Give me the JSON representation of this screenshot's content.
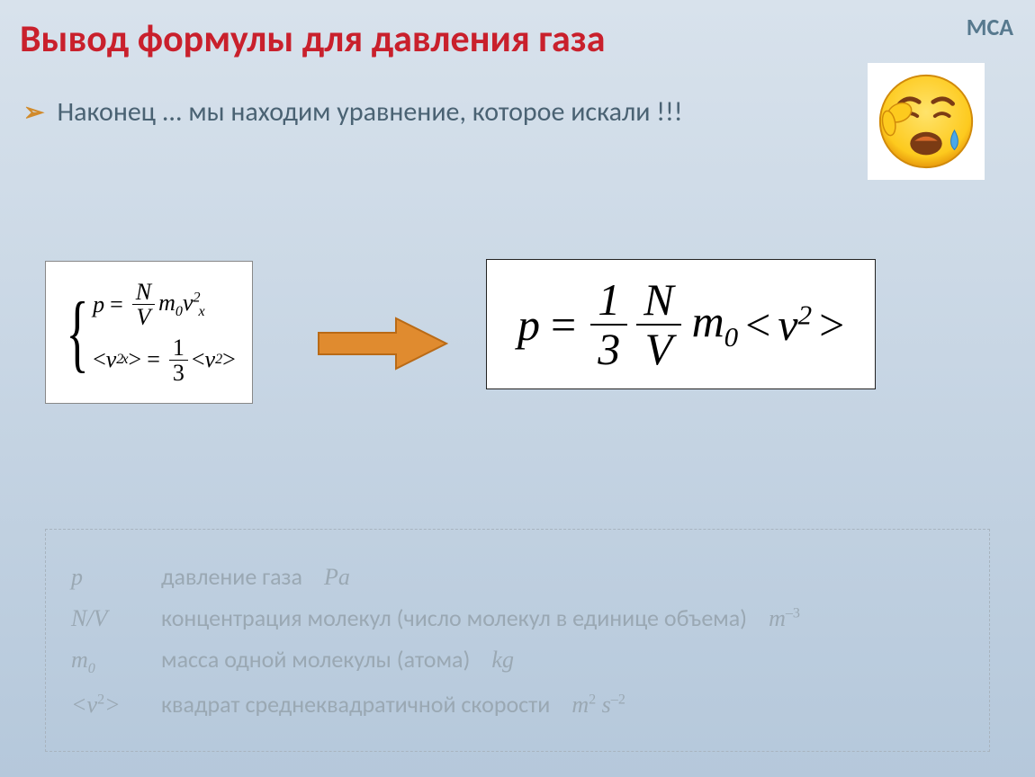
{
  "header": {
    "title": "Вывод формулы для давления газа",
    "corner_label": "МСА"
  },
  "bullet": {
    "marker": "➢",
    "text": "Наконец ... мы находим уравнение, которое искали !!!"
  },
  "emoji": {
    "face_color": "#fdca1e",
    "face_shadow": "#e89a0c",
    "tear_color": "#4aa8e8",
    "mouth_color": "#7b3b14",
    "hand_color": "#fdca1e"
  },
  "formula_left": {
    "line1": {
      "lhs": "p",
      "eq": "=",
      "frac_num": "N",
      "frac_den": "V",
      "tail_base": "m",
      "tail_sub": "0",
      "tail_var": "v",
      "tail_varsub": "x",
      "tail_sup": "2"
    },
    "line2": {
      "lhs_open": "<",
      "lhs_var": "v",
      "lhs_sub": "x",
      "lhs_sup": "2",
      "lhs_close": ">",
      "eq": "=",
      "frac_num": "1",
      "frac_den": "3",
      "rhs_open": "<",
      "rhs_var": "v",
      "rhs_sup": "2",
      "rhs_close": ">"
    }
  },
  "arrow": {
    "fill": "#e08b2f",
    "stroke": "#b96a16"
  },
  "formula_right": {
    "lhs": "p",
    "eq": "=",
    "frac1_num": "1",
    "frac1_den": "3",
    "frac2_num": "N",
    "frac2_den": "V",
    "m_base": "m",
    "m_sub": "0",
    "lt": "<",
    "v_var": "v",
    "v_sup": "2",
    "gt": ">"
  },
  "legend": {
    "rows": [
      {
        "sym_html": "<i>p</i>",
        "desc": "давление газа",
        "unit_html": "<i>Pa</i>"
      },
      {
        "sym_html": "<i>N/V</i>",
        "desc": "концентрация молекул (число молекул в единице объема)",
        "unit_html": "<i>m</i><sup class='sup ups'>–3</sup>"
      },
      {
        "sym_html": "<i>m</i><span class='sub'>0</span>",
        "desc": "масса одной молекулы (атома)",
        "unit_html": "<i>kg</i>"
      },
      {
        "sym_html": "&lt;<i>v</i><sup class='sup ups'>2</sup>&gt;",
        "desc": "квадрат среднеквадратичной скорости",
        "unit_html": "<i>m</i><sup class='sup ups'>2</sup> <i>s</i><sup class='sup ups'>–2</sup>"
      }
    ]
  }
}
